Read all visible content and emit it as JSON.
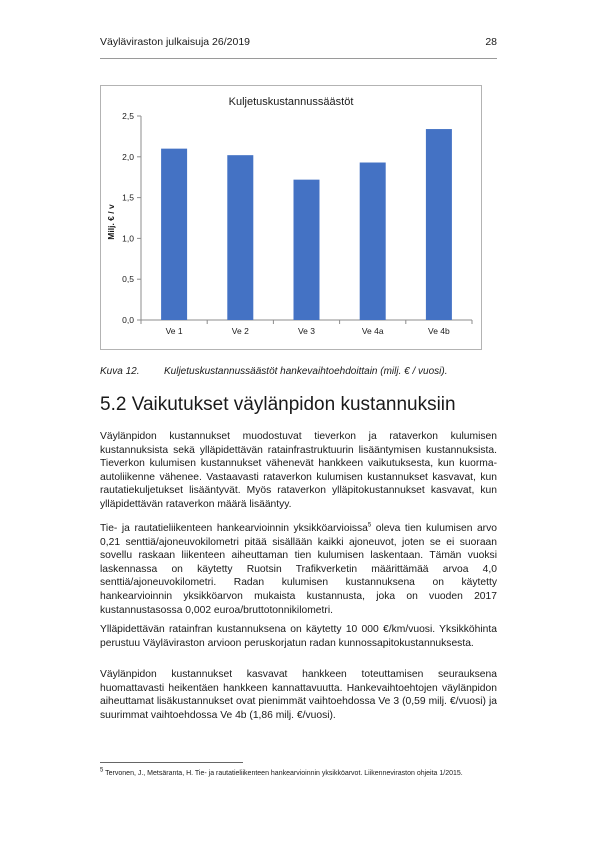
{
  "header": {
    "publication": "Väyläviraston julkaisuja 26/2019",
    "page_number": "28"
  },
  "chart_data": {
    "type": "bar",
    "title": "Kuljetuskustannussäästöt",
    "ylabel": "Milj. € / v",
    "xlabel": "",
    "categories": [
      "Ve 1",
      "Ve 2",
      "Ve 3",
      "Ve 4a",
      "Ve 4b"
    ],
    "values": [
      2.1,
      2.02,
      1.72,
      1.93,
      2.34
    ],
    "ylim": [
      0,
      2.5
    ],
    "yticks": [
      "0,0",
      "0,5",
      "1,0",
      "1,5",
      "2,0",
      "2,5"
    ],
    "grid": false,
    "legend": "none",
    "bar_color": "#4472c4"
  },
  "caption": {
    "number": "Kuva 12.",
    "text": "Kuljetuskustannussäästöt hankevaihtoehdoittain (milj. € / vuosi)."
  },
  "section": {
    "heading": "5.2  Vaikutukset väylänpidon kustannuksiin"
  },
  "paragraphs": {
    "p1": "Väylänpidon kustannukset muodostuvat tieverkon ja rataverkon kulumisen kustannuksista sekä ylläpidettävän ratainfrastruktuurin lisääntymisen kustannuksista. Tieverkon kulumisen kustannukset vähenevät hankkeen vaikutuksesta, kun kuorma-autoliikenne vähenee. Vastaavasti rataverkon kulumisen kustannukset kasvavat, kun rautatiekuljetukset lisääntyvät. Myös rataverkon ylläpitokustannukset kasvavat, kun ylläpidettävän rataverkon määrä lisääntyy.",
    "p2_before": "Tie- ja rautatieliikenteen hankearvioinnin yksikköarvioissa",
    "p2_sup": "5",
    "p2_after": " oleva tien kulumisen arvo 0,21 senttiä/ajoneuvokilometri pitää sisällään kaikki ajoneuvot, joten se ei suoraan sovellu raskaan liikenteen aiheuttaman tien kulumisen laskentaan. Tämän vuoksi laskennassa on käytetty Ruotsin Trafikverketin määrittämää arvoa 4,0 senttiä/ajoneuvokilometri. Radan kulumisen kustannuksena on käytetty hankearvioinnin yksikköarvon mukaista kustannusta, joka on vuoden 2017 kustannustasossa 0,002 euroa/bruttotonnikilometri.",
    "p3": "Ylläpidettävän ratainfran kustannuksena on käytetty 10 000 €/km/vuosi. Yksikköhinta perustuu Väyläviraston arvioon peruskorjatun radan kunnossapitokustannuksesta.",
    "p4": "Väylänpidon kustannukset kasvavat hankkeen toteuttamisen seurauksena huomattavasti heikentäen hankkeen kannattavuutta. Hankevaihtoehtojen väylänpidon aiheuttamat lisäkustannukset ovat pienimmät vaihtoehdossa Ve 3 (0,59 milj. €/vuosi) ja suurimmat vaihtoehdossa Ve 4b (1,86 milj. €/vuosi)."
  },
  "footnote": {
    "marker": "5",
    "text": " Tervonen, J., Metsäranta, H. Tie- ja rautatieliikenteen hankearvioinnin yksikköarvot. Liikenneviraston ohjeita 1/2015."
  }
}
